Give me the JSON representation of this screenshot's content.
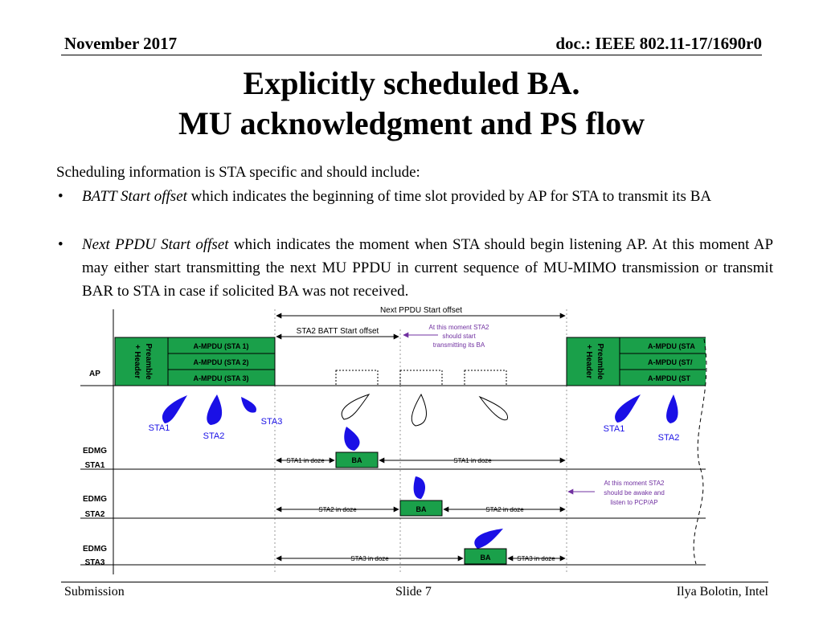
{
  "header": {
    "date": "November 2017",
    "doc": "doc.: IEEE 802.11-17/1690r0"
  },
  "title": {
    "line1": "Explicitly scheduled BA.",
    "line2": "MU acknowledgment and PS flow"
  },
  "intro": "Scheduling information is STA specific and should include:",
  "bullets": [
    {
      "term": "BATT Start offset",
      "text": " which indicates the beginning of time slot provided by AP for STA to transmit its BA"
    },
    {
      "term": "Next PPDU Start offset",
      "text": " which indicates the moment when STA should begin listening AP. At this moment AP may either start transmitting the next MU PPDU in current sequence of MU-MIMO transmission or transmit BAR to STA in case if solicited BA was not received."
    }
  ],
  "diagram": {
    "next_ppdu_label": "Next PPDU Start offset",
    "batt_label": "STA2 BATT Start offset",
    "note1_lines": [
      "At this moment STA2",
      "should start",
      "transmitting its BA"
    ],
    "note2_lines": [
      "At this moment STA2",
      "should be awake and",
      "listen to PCP/AP"
    ],
    "preamble_line1": "Preamble",
    "preamble_line2": "+ Header",
    "ampdu": [
      "A-MPDU (STA 1)",
      "A-MPDU (STA 2)",
      "A-MPDU (STA 3)"
    ],
    "ampdu_cut": [
      "A-MPDU (STA",
      "A-MPDU (ST/",
      "A-MPDU (ST"
    ],
    "row_labels": {
      "ap": "AP",
      "sta1": [
        "EDMG",
        "STA1"
      ],
      "sta2": [
        "EDMG",
        "STA2"
      ],
      "sta3": [
        "EDMG",
        "STA3"
      ]
    },
    "beam_labels": [
      "STA1",
      "STA2",
      "STA3",
      "STA1",
      "STA2"
    ],
    "ba": "BA",
    "doze": {
      "sta1_left": "STA1 in doze",
      "sta1_right": "STA1 in doze",
      "sta2_left": "STA2 in doze",
      "sta2_right": "STA2 in doze",
      "sta3_left": "STA3 in doze",
      "sta3_right": "STA3 in doze"
    },
    "colors": {
      "green": "#1aa04a",
      "beam": "#1a10e6",
      "note": "#7030a0"
    }
  },
  "footer": {
    "left": "Submission",
    "center": "Slide 7",
    "right": "Ilya Bolotin, Intel"
  }
}
